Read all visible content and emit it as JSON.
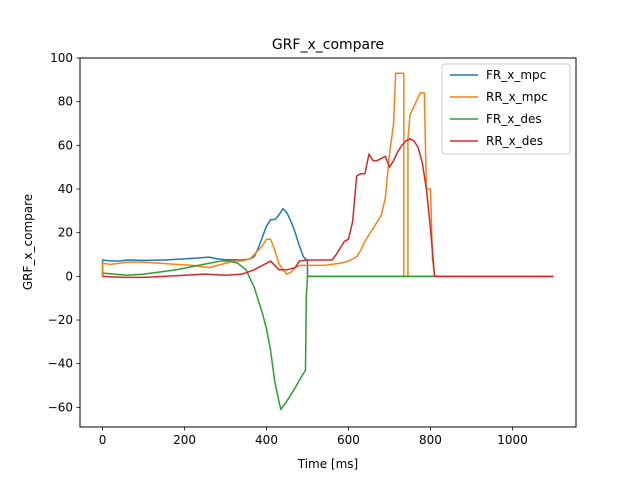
{
  "chart_data": {
    "type": "line",
    "title": "GRF_x_compare",
    "xlabel": "Time [ms]",
    "ylabel": "GRF_x_compare",
    "xlim": [
      -55,
      1155
    ],
    "ylim": [
      -69,
      100
    ],
    "xticks": [
      0,
      200,
      400,
      600,
      800,
      1000
    ],
    "yticks": [
      -60,
      -40,
      -20,
      0,
      20,
      40,
      60,
      80,
      100
    ],
    "grid": false,
    "legend_position": "top-right",
    "series": [
      {
        "name": "FR_x_mpc",
        "color": "#1f77b4",
        "points": [
          [
            0,
            0
          ],
          [
            0,
            7.5
          ],
          [
            20,
            7
          ],
          [
            40,
            7
          ],
          [
            60,
            7.5
          ],
          [
            100,
            7.3
          ],
          [
            150,
            7.5
          ],
          [
            200,
            8
          ],
          [
            240,
            8.5
          ],
          [
            260,
            8.8
          ],
          [
            280,
            8
          ],
          [
            300,
            7.6
          ],
          [
            320,
            7.6
          ],
          [
            340,
            7.5
          ],
          [
            360,
            8
          ],
          [
            370,
            9
          ],
          [
            380,
            13
          ],
          [
            390,
            18
          ],
          [
            400,
            23
          ],
          [
            410,
            26
          ],
          [
            420,
            26
          ],
          [
            430,
            28
          ],
          [
            440,
            31
          ],
          [
            450,
            29
          ],
          [
            460,
            25
          ],
          [
            470,
            20
          ],
          [
            480,
            14
          ],
          [
            490,
            9
          ],
          [
            500,
            7
          ],
          [
            500,
            0
          ],
          [
            1100,
            0
          ]
        ]
      },
      {
        "name": "RR_x_mpc",
        "color": "#ff7f0e",
        "points": [
          [
            0,
            0
          ],
          [
            0,
            6
          ],
          [
            20,
            5.5
          ],
          [
            40,
            6
          ],
          [
            60,
            6.5
          ],
          [
            100,
            6.5
          ],
          [
            140,
            6
          ],
          [
            180,
            5.5
          ],
          [
            220,
            5
          ],
          [
            260,
            4
          ],
          [
            300,
            6
          ],
          [
            320,
            7
          ],
          [
            340,
            7
          ],
          [
            360,
            8
          ],
          [
            375,
            11
          ],
          [
            390,
            14
          ],
          [
            400,
            17
          ],
          [
            410,
            17
          ],
          [
            420,
            12
          ],
          [
            430,
            6
          ],
          [
            440,
            3
          ],
          [
            450,
            1
          ],
          [
            460,
            2
          ],
          [
            470,
            4
          ],
          [
            480,
            5
          ],
          [
            500,
            5
          ],
          [
            540,
            5
          ],
          [
            580,
            6
          ],
          [
            600,
            7
          ],
          [
            610,
            8
          ],
          [
            620,
            9
          ],
          [
            630,
            12
          ],
          [
            640,
            16
          ],
          [
            650,
            19
          ],
          [
            660,
            22
          ],
          [
            670,
            25
          ],
          [
            680,
            28
          ],
          [
            690,
            36
          ],
          [
            700,
            56
          ],
          [
            710,
            70
          ],
          [
            715,
            93
          ],
          [
            735,
            93
          ],
          [
            735,
            0
          ],
          [
            745,
            0
          ],
          [
            745,
            63
          ],
          [
            750,
            74
          ],
          [
            765,
            80
          ],
          [
            775,
            84
          ],
          [
            785,
            84
          ],
          [
            790,
            40
          ],
          [
            800,
            40
          ],
          [
            805,
            8
          ],
          [
            810,
            0
          ],
          [
            1100,
            0
          ]
        ]
      },
      {
        "name": "FR_x_des",
        "color": "#2ca02c",
        "points": [
          [
            0,
            1.5
          ],
          [
            30,
            1
          ],
          [
            60,
            0.5
          ],
          [
            100,
            1
          ],
          [
            140,
            2
          ],
          [
            180,
            3
          ],
          [
            220,
            4.5
          ],
          [
            260,
            6
          ],
          [
            290,
            7
          ],
          [
            310,
            7
          ],
          [
            330,
            6
          ],
          [
            350,
            3
          ],
          [
            370,
            -5
          ],
          [
            390,
            -17
          ],
          [
            400,
            -24
          ],
          [
            410,
            -34
          ],
          [
            420,
            -48
          ],
          [
            430,
            -57
          ],
          [
            435,
            -61
          ],
          [
            450,
            -57
          ],
          [
            470,
            -51
          ],
          [
            485,
            -46
          ],
          [
            495,
            -43
          ],
          [
            497,
            -10
          ],
          [
            500,
            0
          ],
          [
            1100,
            0
          ]
        ]
      },
      {
        "name": "RR_x_des",
        "color": "#d62728",
        "points": [
          [
            0,
            0
          ],
          [
            50,
            -0.5
          ],
          [
            100,
            -0.5
          ],
          [
            150,
            0
          ],
          [
            200,
            0.5
          ],
          [
            250,
            1
          ],
          [
            300,
            0.5
          ],
          [
            340,
            1
          ],
          [
            370,
            3
          ],
          [
            390,
            5
          ],
          [
            410,
            7
          ],
          [
            420,
            5
          ],
          [
            430,
            3
          ],
          [
            450,
            3
          ],
          [
            470,
            4
          ],
          [
            480,
            7
          ],
          [
            500,
            7.5
          ],
          [
            520,
            7.5
          ],
          [
            560,
            7.5
          ],
          [
            570,
            10
          ],
          [
            590,
            16
          ],
          [
            600,
            17
          ],
          [
            610,
            25
          ],
          [
            620,
            46
          ],
          [
            630,
            47
          ],
          [
            640,
            47
          ],
          [
            650,
            56
          ],
          [
            660,
            53
          ],
          [
            670,
            53
          ],
          [
            680,
            54
          ],
          [
            690,
            55
          ],
          [
            700,
            50
          ],
          [
            710,
            53
          ],
          [
            720,
            57
          ],
          [
            730,
            60
          ],
          [
            740,
            62
          ],
          [
            750,
            63
          ],
          [
            760,
            62
          ],
          [
            770,
            59
          ],
          [
            780,
            52
          ],
          [
            790,
            40
          ],
          [
            800,
            22
          ],
          [
            810,
            0
          ],
          [
            1100,
            0
          ]
        ]
      }
    ]
  }
}
